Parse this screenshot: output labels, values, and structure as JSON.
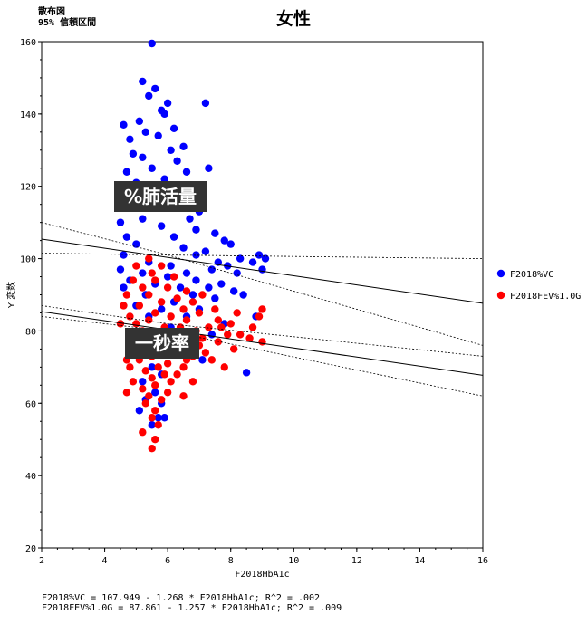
{
  "header": {
    "subtitle1": "散布図",
    "subtitle2": "95% 信頼区間",
    "title": "女性"
  },
  "annotations": {
    "vc": "%肺活量",
    "fev": "一秒率"
  },
  "footer": {
    "eq1": "F2018%VC = 107.949 - 1.268 * F2018HbA1c; R^2 = .002",
    "eq2": "F2018FEV%1.0G = 87.861 - 1.257 * F2018HbA1c; R^2 = .009"
  },
  "colors": {
    "vc": "#0000ff",
    "fev": "#ff0000",
    "line": "#000000"
  },
  "chart_data": {
    "type": "scatter",
    "xlabel": "F2018HbA1c",
    "ylabel": "Y 変数",
    "xlim": [
      2,
      16
    ],
    "ylim": [
      20,
      160
    ],
    "xticks": [
      2,
      4,
      6,
      8,
      10,
      12,
      14,
      16
    ],
    "yticks": [
      20,
      40,
      60,
      80,
      100,
      120,
      140,
      160
    ],
    "legend_position": "right",
    "series": [
      {
        "name": "F2018%VC",
        "color": "#0000ff",
        "regression": {
          "intercept": 107.949,
          "slope": -1.268
        },
        "ci_upper": [
          [
            2,
            110
          ],
          [
            6,
            101
          ],
          [
            16,
            76
          ]
        ],
        "ci_lower": [
          [
            2,
            101.5
          ],
          [
            6,
            101
          ],
          [
            16,
            100
          ]
        ],
        "points": [
          [
            5.5,
            159.5
          ],
          [
            5.2,
            149
          ],
          [
            5.6,
            147
          ],
          [
            5.4,
            145
          ],
          [
            7.2,
            143
          ],
          [
            5.8,
            141
          ],
          [
            6.0,
            143
          ],
          [
            5.1,
            138
          ],
          [
            5.9,
            140
          ],
          [
            4.6,
            137
          ],
          [
            5.3,
            135
          ],
          [
            6.2,
            136
          ],
          [
            4.8,
            133
          ],
          [
            5.7,
            134
          ],
          [
            6.5,
            131
          ],
          [
            4.9,
            129
          ],
          [
            6.1,
            130
          ],
          [
            5.2,
            128
          ],
          [
            6.3,
            127
          ],
          [
            7.3,
            125
          ],
          [
            4.7,
            124
          ],
          [
            5.5,
            125
          ],
          [
            5.9,
            122
          ],
          [
            6.6,
            124
          ],
          [
            4.6,
            118
          ],
          [
            5.0,
            121
          ],
          [
            6.8,
            120
          ],
          [
            6.1,
            118
          ],
          [
            4.8,
            115
          ],
          [
            5.6,
            116
          ],
          [
            6.4,
            115
          ],
          [
            7.0,
            113
          ],
          [
            4.5,
            110
          ],
          [
            5.2,
            111
          ],
          [
            6.7,
            111
          ],
          [
            5.8,
            109
          ],
          [
            6.9,
            108
          ],
          [
            7.5,
            107
          ],
          [
            4.7,
            106
          ],
          [
            6.2,
            106
          ],
          [
            7.8,
            105
          ],
          [
            8.0,
            104
          ],
          [
            5.0,
            104
          ],
          [
            6.5,
            103
          ],
          [
            7.2,
            102
          ],
          [
            8.3,
            100
          ],
          [
            4.6,
            101
          ],
          [
            6.9,
            101
          ],
          [
            7.6,
            99
          ],
          [
            8.9,
            101
          ],
          [
            9.1,
            100
          ],
          [
            8.7,
            99
          ],
          [
            7.9,
            98
          ],
          [
            5.4,
            99
          ],
          [
            6.1,
            98
          ],
          [
            4.5,
            97
          ],
          [
            7.4,
            97
          ],
          [
            6.6,
            96
          ],
          [
            8.2,
            96
          ],
          [
            9.0,
            97
          ],
          [
            5.2,
            96
          ],
          [
            6.0,
            95
          ],
          [
            6.9,
            94
          ],
          [
            7.7,
            93
          ],
          [
            4.8,
            94
          ],
          [
            5.6,
            93
          ],
          [
            6.4,
            92
          ],
          [
            7.3,
            92
          ],
          [
            8.1,
            91
          ],
          [
            4.6,
            92
          ],
          [
            6.8,
            90
          ],
          [
            7.5,
            89
          ],
          [
            5.3,
            90
          ],
          [
            6.2,
            88
          ],
          [
            8.4,
            90
          ],
          [
            5.0,
            87
          ],
          [
            7.0,
            86
          ],
          [
            5.8,
            86
          ],
          [
            6.6,
            84
          ],
          [
            8.8,
            84
          ],
          [
            5.4,
            84
          ],
          [
            7.8,
            82
          ],
          [
            6.1,
            81
          ],
          [
            5.2,
            79
          ],
          [
            7.4,
            79
          ],
          [
            5.9,
            77
          ],
          [
            6.6,
            76
          ],
          [
            5.6,
            74
          ],
          [
            7.1,
            72
          ],
          [
            5.5,
            70
          ],
          [
            5.8,
            68
          ],
          [
            8.5,
            68.5
          ],
          [
            5.2,
            66
          ],
          [
            5.6,
            63
          ],
          [
            5.3,
            61
          ],
          [
            5.8,
            60
          ],
          [
            5.1,
            58
          ],
          [
            5.7,
            56
          ],
          [
            5.5,
            54
          ],
          [
            5.9,
            56
          ]
        ]
      },
      {
        "name": "F2018FEV%1.0G",
        "color": "#ff0000",
        "regression": {
          "intercept": 87.861,
          "slope": -1.257
        },
        "ci_upper": [
          [
            2,
            87
          ],
          [
            6,
            82
          ],
          [
            16,
            73
          ]
        ],
        "ci_lower": [
          [
            2,
            84
          ],
          [
            6,
            80
          ],
          [
            16,
            62
          ]
        ],
        "points": [
          [
            5.4,
            100
          ],
          [
            5.0,
            98
          ],
          [
            5.8,
            98
          ],
          [
            5.5,
            96
          ],
          [
            6.2,
            95
          ],
          [
            4.9,
            94
          ],
          [
            5.6,
            94
          ],
          [
            6.0,
            92
          ],
          [
            5.2,
            92
          ],
          [
            6.6,
            91
          ],
          [
            4.7,
            90
          ],
          [
            5.4,
            90
          ],
          [
            6.3,
            89
          ],
          [
            7.1,
            90
          ],
          [
            5.8,
            88
          ],
          [
            6.8,
            88
          ],
          [
            4.6,
            87
          ],
          [
            5.1,
            87
          ],
          [
            6.5,
            86
          ],
          [
            9.0,
            86
          ],
          [
            7.5,
            86
          ],
          [
            5.6,
            85
          ],
          [
            6.1,
            84
          ],
          [
            7.0,
            85
          ],
          [
            8.2,
            85
          ],
          [
            4.8,
            84
          ],
          [
            5.4,
            83
          ],
          [
            6.6,
            83
          ],
          [
            7.6,
            83
          ],
          [
            8.0,
            82
          ],
          [
            4.5,
            82
          ],
          [
            5.0,
            82
          ],
          [
            5.9,
            81
          ],
          [
            6.4,
            81
          ],
          [
            7.3,
            81
          ],
          [
            8.7,
            81
          ],
          [
            5.2,
            80
          ],
          [
            6.0,
            79
          ],
          [
            6.9,
            80
          ],
          [
            7.9,
            79
          ],
          [
            4.9,
            78
          ],
          [
            5.6,
            78
          ],
          [
            6.3,
            77
          ],
          [
            7.1,
            78
          ],
          [
            8.6,
            78
          ],
          [
            5.3,
            76
          ],
          [
            6.7,
            76
          ],
          [
            7.6,
            77
          ],
          [
            9.0,
            77
          ],
          [
            5.9,
            75
          ],
          [
            4.8,
            75
          ],
          [
            6.2,
            74
          ],
          [
            7.2,
            74
          ],
          [
            8.1,
            75
          ],
          [
            5.5,
            73
          ],
          [
            6.8,
            73
          ],
          [
            4.7,
            72
          ],
          [
            5.1,
            72
          ],
          [
            6.0,
            71
          ],
          [
            7.4,
            72
          ],
          [
            5.7,
            70
          ],
          [
            6.5,
            70
          ],
          [
            4.8,
            70
          ],
          [
            5.3,
            69
          ],
          [
            6.3,
            68
          ],
          [
            7.8,
            70
          ],
          [
            5.5,
            67
          ],
          [
            6.1,
            66
          ],
          [
            4.9,
            66
          ],
          [
            6.8,
            66
          ],
          [
            5.6,
            65
          ],
          [
            5.2,
            64
          ],
          [
            6.0,
            63
          ],
          [
            4.7,
            63
          ],
          [
            5.4,
            62
          ],
          [
            5.8,
            61
          ],
          [
            6.5,
            62
          ],
          [
            5.3,
            60
          ],
          [
            5.6,
            58
          ],
          [
            5.5,
            56
          ],
          [
            5.7,
            54
          ],
          [
            5.2,
            52
          ],
          [
            5.6,
            50
          ],
          [
            5.5,
            47.5
          ],
          [
            5.9,
            68
          ],
          [
            6.6,
            72
          ],
          [
            7.0,
            76
          ],
          [
            8.3,
            79
          ],
          [
            8.9,
            84
          ],
          [
            7.7,
            81
          ]
        ]
      }
    ]
  }
}
